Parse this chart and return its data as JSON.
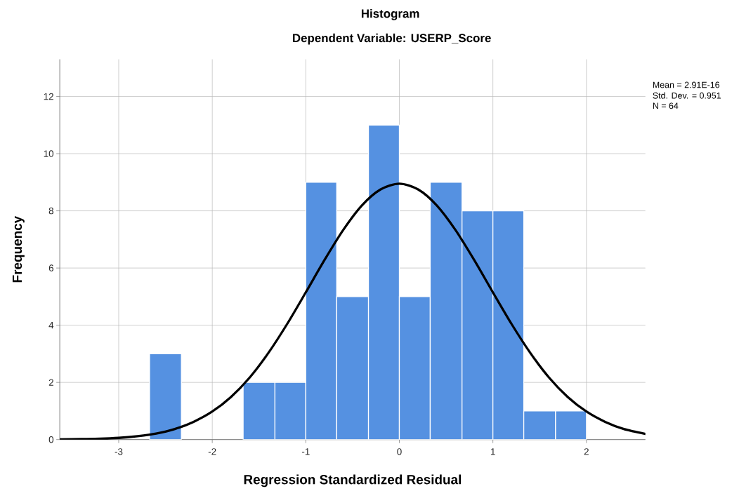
{
  "chart_data": {
    "type": "histogram",
    "title": "Histogram",
    "subtitle": "Dependent Variable: USERP_Score",
    "xlabel": "Regression Standardized Residual",
    "ylabel": "Frequency",
    "annotations": [
      "Mean = 2.91E-16",
      "Std. Dev. = 0.951",
      "N = 64"
    ],
    "bins": [
      -2.67,
      -2.33,
      -1.67,
      -1.33,
      -1,
      -0.67,
      -0.33,
      0,
      0.33,
      0.67,
      1,
      1.33,
      1.67,
      2
    ],
    "values": [
      3,
      0,
      2,
      2,
      9,
      5,
      11,
      5,
      9,
      8,
      8,
      1,
      1
    ],
    "color": "#5591e1",
    "series": [
      {
        "type": "line",
        "color": "#000000",
        "x": [
          -3.63,
          -3.4,
          -3.2,
          -3.0,
          -2.8,
          -2.6,
          -2.4,
          -2.2,
          -2.0,
          -1.8,
          -1.6,
          -1.4,
          -1.2,
          -1.0,
          -0.8,
          -0.6,
          -0.4,
          -0.2,
          0,
          0.2,
          0.4,
          0.6,
          0.8,
          1.0,
          1.2,
          1.4,
          1.6,
          1.8,
          2.0,
          2.2,
          2.4,
          2.63
        ],
        "values": [
          0.01,
          0.02,
          0.03,
          0.06,
          0.12,
          0.21,
          0.37,
          0.62,
          0.98,
          1.49,
          2.17,
          3.03,
          4.04,
          5.15,
          6.28,
          7.33,
          8.19,
          8.75,
          8.95,
          8.75,
          8.19,
          7.33,
          6.28,
          5.15,
          4.04,
          3.03,
          2.17,
          1.49,
          0.98,
          0.62,
          0.37,
          0.2
        ]
      }
    ],
    "xlim": [
      -3.63,
      2.63
    ],
    "ylim": [
      0,
      13.3
    ],
    "xticks": [
      -3,
      -2,
      -1,
      0,
      1,
      2
    ],
    "yticks": [
      0,
      2,
      4,
      6,
      8,
      10,
      12
    ],
    "grid": true
  }
}
